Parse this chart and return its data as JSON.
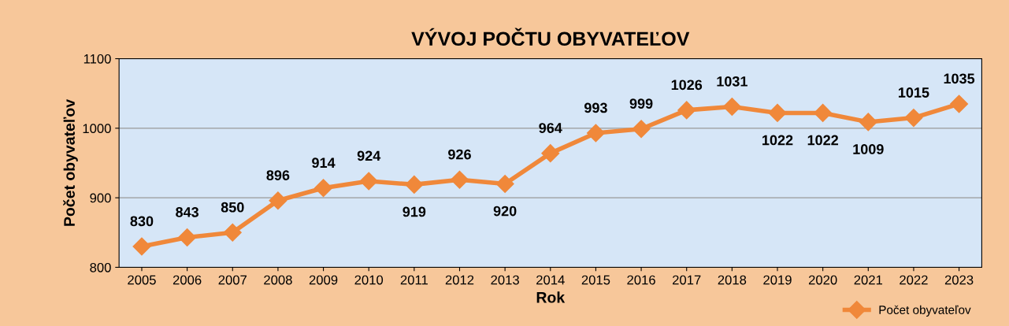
{
  "chart_data": {
    "type": "line",
    "title": "VÝVOJ POČTU OBYVATEĽOV",
    "xlabel": "Rok",
    "ylabel": "Počet obyvateľov",
    "categories": [
      "2005",
      "2006",
      "2007",
      "2008",
      "2009",
      "2010",
      "2011",
      "2012",
      "2013",
      "2014",
      "2015",
      "2016",
      "2017",
      "2018",
      "2019",
      "2020",
      "2021",
      "2022",
      "2023"
    ],
    "series": [
      {
        "name": "Počet obyvateľov",
        "color": "#f0883a",
        "values": [
          830,
          843,
          850,
          896,
          914,
          924,
          919,
          926,
          920,
          964,
          993,
          999,
          1026,
          1031,
          1022,
          1022,
          1009,
          1015,
          1035
        ]
      }
    ],
    "ylim": [
      800,
      1100
    ],
    "yticks": [
      800,
      900,
      1000,
      1100
    ],
    "grid": "y",
    "legend": "bottom right",
    "marker": "diamond",
    "line_style": "solid",
    "data_labels": true
  }
}
